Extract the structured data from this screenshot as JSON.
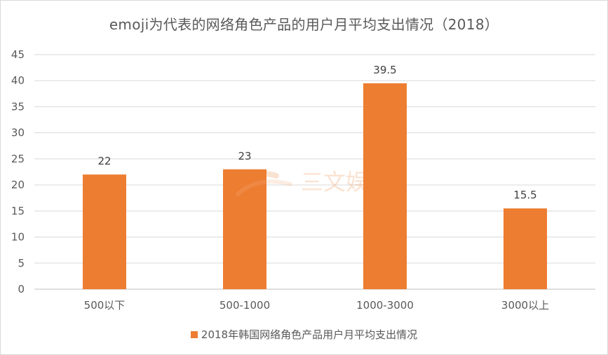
{
  "chart_data": {
    "type": "bar",
    "title": "emoji为代表的网络角色产品的用户月平均支出情况（2018）",
    "categories": [
      "500以下",
      "500-1000",
      "1000-3000",
      "3000以上"
    ],
    "series": [
      {
        "name": "2018年韩国网络角色产品用户月平均支出情况",
        "values": [
          22,
          23,
          39.5,
          15.5
        ],
        "color": "#ED7D31"
      }
    ],
    "data_labels": [
      "22",
      "23",
      "39.5",
      "15.5"
    ],
    "ylim": [
      0,
      45
    ],
    "yticks": [
      "0",
      "5",
      "10",
      "15",
      "20",
      "25",
      "30",
      "35",
      "40",
      "45"
    ],
    "grid": true,
    "legend_position": "bottom"
  },
  "watermark": {
    "text": "三文娱",
    "color": "#ED7D31"
  }
}
